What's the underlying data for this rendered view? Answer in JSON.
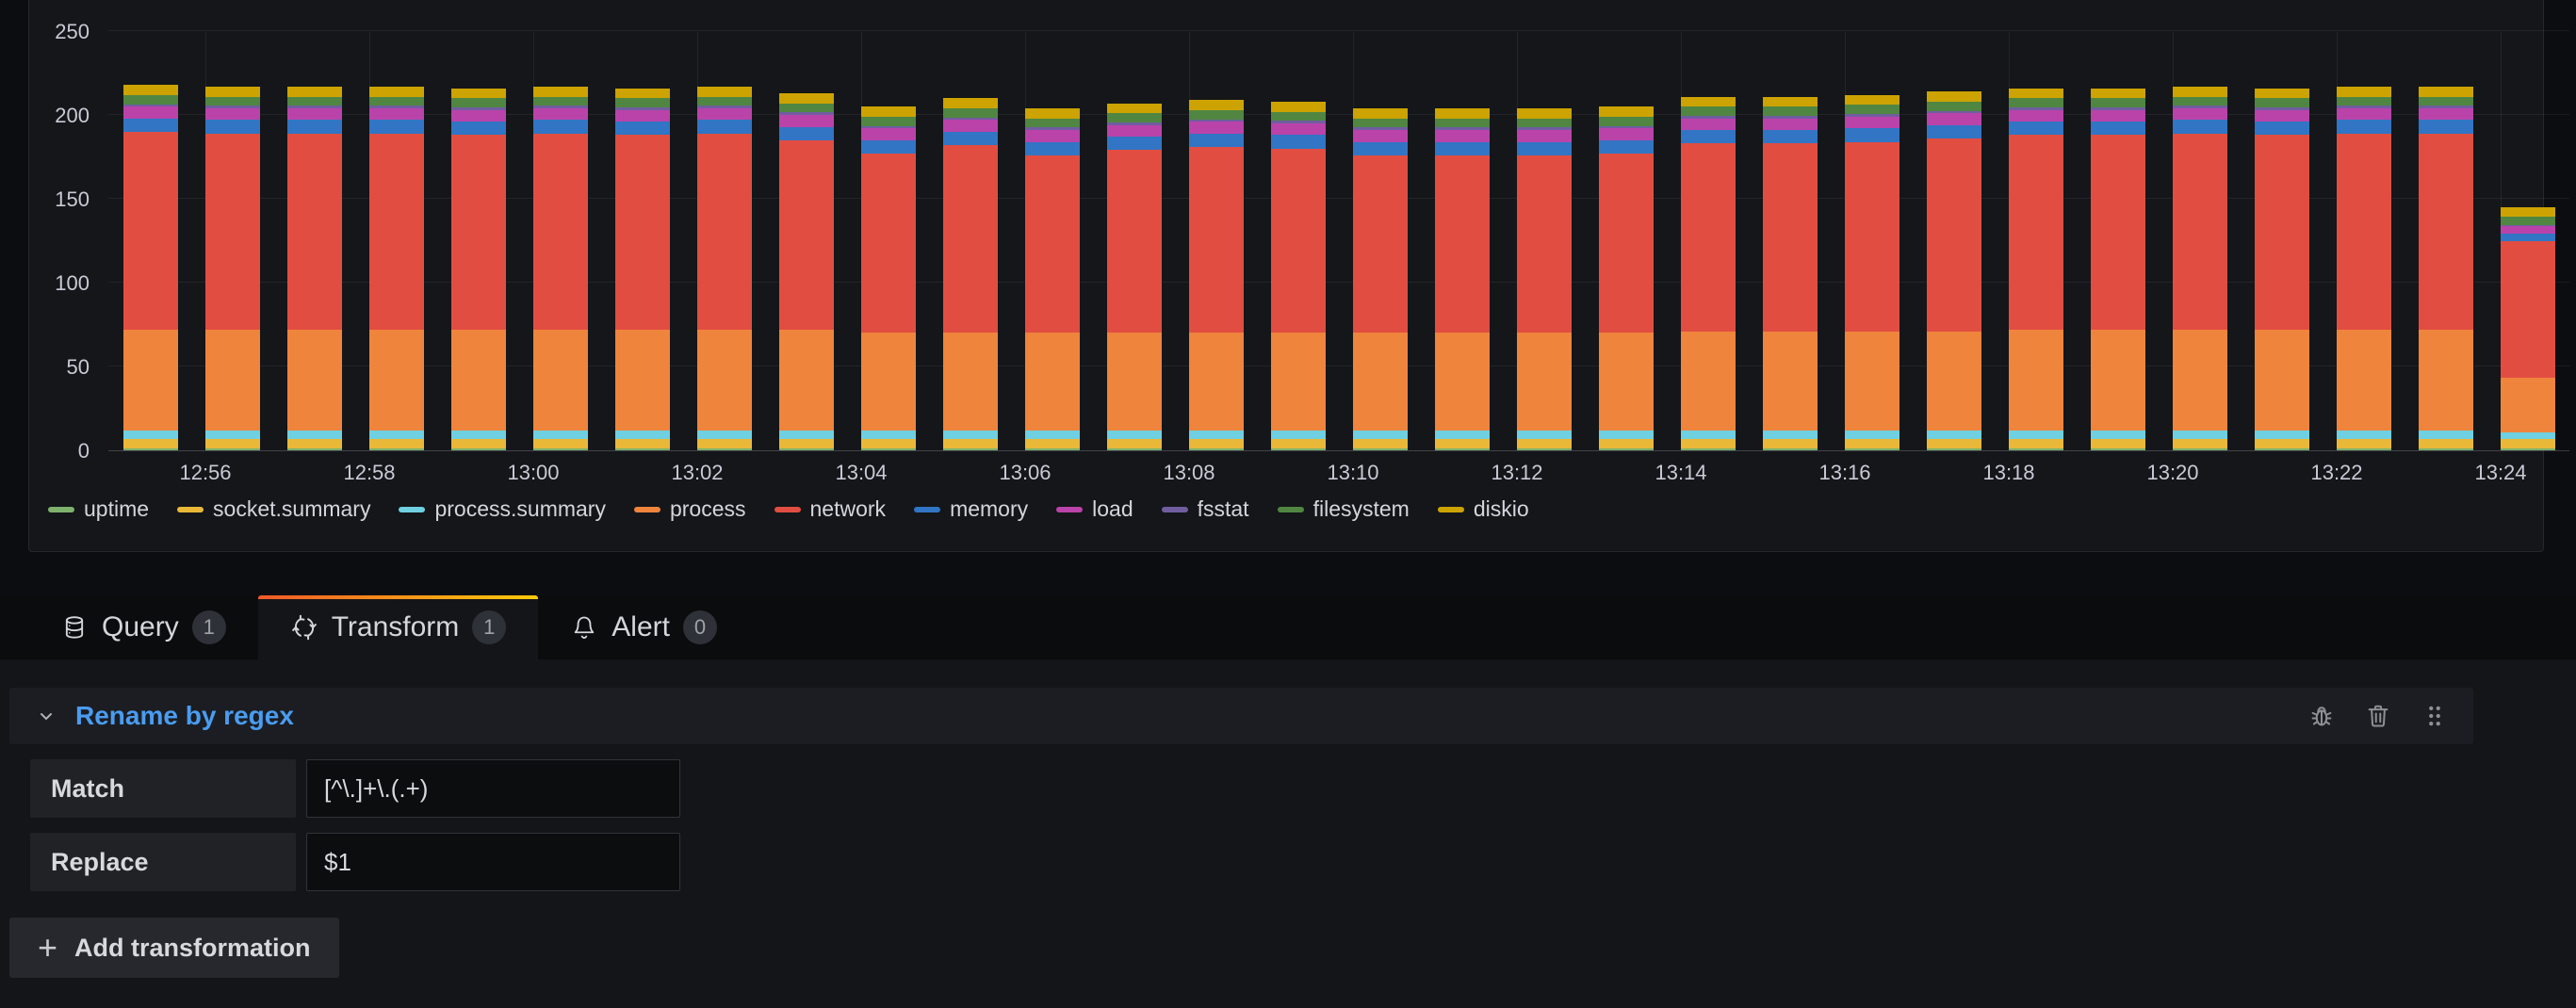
{
  "chart_data": {
    "type": "bar",
    "stacked": true,
    "title": "",
    "xlabel": "",
    "ylabel": "",
    "ylim": [
      0,
      250
    ],
    "grid": true,
    "legend_position": "bottom",
    "yticks": [
      0,
      50,
      100,
      150,
      200,
      250
    ],
    "xticks": [
      "12:56",
      "12:58",
      "13:00",
      "13:02",
      "13:04",
      "13:06",
      "13:08",
      "13:10",
      "13:12",
      "13:14",
      "13:16",
      "13:18",
      "13:20",
      "13:22",
      "13:24"
    ],
    "x": [
      "12:55",
      "12:56",
      "12:57",
      "12:58",
      "12:59",
      "13:00",
      "13:01",
      "13:02",
      "13:03",
      "13:04",
      "13:05",
      "13:06",
      "13:07",
      "13:08",
      "13:09",
      "13:10",
      "13:11",
      "13:12",
      "13:13",
      "13:14",
      "13:15",
      "13:16",
      "13:17",
      "13:18",
      "13:19",
      "13:20",
      "13:21",
      "13:22",
      "13:23",
      "13:24"
    ],
    "series": [
      {
        "name": "uptime",
        "color": "#7EB26D",
        "values": [
          1,
          1,
          1,
          1,
          1,
          1,
          1,
          1,
          1,
          1,
          1,
          1,
          1,
          1,
          1,
          1,
          1,
          1,
          1,
          1,
          1,
          1,
          1,
          1,
          1,
          1,
          1,
          1,
          1,
          1
        ]
      },
      {
        "name": "socket.summary",
        "color": "#EAB839",
        "values": [
          6,
          6,
          6,
          6,
          6,
          6,
          6,
          6,
          6,
          6,
          6,
          6,
          6,
          6,
          6,
          6,
          6,
          6,
          6,
          6,
          6,
          6,
          6,
          6,
          6,
          6,
          6,
          6,
          6,
          5.5
        ]
      },
      {
        "name": "process.summary",
        "color": "#6ED0E0",
        "values": [
          5,
          5,
          5,
          5,
          5,
          5,
          5,
          5,
          5,
          5,
          5,
          5,
          5,
          5,
          5,
          5,
          5,
          5,
          5,
          5,
          5,
          5,
          5,
          5,
          5,
          5,
          5,
          5,
          5,
          4
        ]
      },
      {
        "name": "process",
        "color": "#EF843C",
        "values": [
          60,
          60,
          60,
          60,
          60,
          60,
          60,
          60,
          60,
          58,
          58,
          58,
          58,
          58,
          58,
          58,
          58,
          58,
          58,
          59,
          59,
          59,
          59,
          60,
          60,
          60,
          60,
          60,
          60,
          33
        ]
      },
      {
        "name": "network",
        "color": "#E24D42",
        "values": [
          118,
          117,
          117,
          117,
          116,
          117,
          116,
          117,
          113,
          107,
          112,
          106,
          109,
          111,
          110,
          106,
          106,
          106,
          107,
          112,
          112,
          113,
          115,
          116,
          116,
          117,
          116,
          117,
          117,
          81
        ]
      },
      {
        "name": "memory",
        "color": "#3175C4",
        "values": [
          8,
          8,
          8,
          8,
          8,
          8,
          8,
          8,
          8,
          8,
          8,
          8,
          8,
          8,
          8,
          8,
          8,
          8,
          8,
          8,
          8,
          8,
          8,
          8,
          8,
          8,
          8,
          8,
          8,
          5
        ]
      },
      {
        "name": "load",
        "color": "#BA43A9",
        "values": [
          7,
          7,
          7,
          7,
          7,
          7,
          7,
          7,
          7,
          7,
          7,
          7,
          7,
          7,
          7,
          7,
          7,
          7,
          7,
          7,
          7,
          7,
          7,
          7,
          7,
          7,
          7,
          7,
          7,
          4
        ]
      },
      {
        "name": "fsstat",
        "color": "#705DA0",
        "values": [
          1.5,
          1.5,
          1.5,
          1.5,
          1.5,
          1.5,
          1.5,
          1.5,
          1.5,
          1.5,
          1.5,
          1.5,
          1.5,
          1.5,
          1.5,
          1.5,
          1.5,
          1.5,
          1.5,
          1.5,
          1.5,
          1.5,
          1.5,
          1.5,
          1.5,
          1.5,
          1.5,
          1.5,
          1.5,
          1
        ]
      },
      {
        "name": "filesystem",
        "color": "#508642",
        "values": [
          5.5,
          5.5,
          5.5,
          5.5,
          5.5,
          5.5,
          5.5,
          5.5,
          5.5,
          5.5,
          5.5,
          5.5,
          5.5,
          5.5,
          5.5,
          5.5,
          5.5,
          5.5,
          5.5,
          5.5,
          5.5,
          5.5,
          5.5,
          5.5,
          5.5,
          5.5,
          5.5,
          5.5,
          5.5,
          5
        ]
      },
      {
        "name": "diskio",
        "color": "#CCA300",
        "values": [
          6,
          6,
          6,
          6,
          6,
          6,
          6,
          6,
          6,
          6,
          6,
          6,
          6,
          6,
          6,
          6,
          6,
          6,
          6,
          6,
          6,
          6,
          6,
          6,
          6,
          6,
          6,
          6,
          6,
          5.5
        ]
      }
    ]
  },
  "tabs": [
    {
      "label": "Query",
      "count": "1",
      "active": false
    },
    {
      "label": "Transform",
      "count": "1",
      "active": true
    },
    {
      "label": "Alert",
      "count": "0",
      "active": false
    }
  ],
  "transform_card": {
    "title": "Rename by regex",
    "match_label": "Match",
    "match_value": "[^\\.]+\\.(.+)",
    "replace_label": "Replace",
    "replace_value": "$1"
  },
  "add_button": {
    "label": "Add transformation"
  },
  "colors": {
    "accent_gradient_start": "#F05A28",
    "accent_gradient_end": "#FBCA0A",
    "link_blue": "#4A9CF0",
    "panel_bg": "#141619",
    "page_bg": "#0C0D10"
  }
}
